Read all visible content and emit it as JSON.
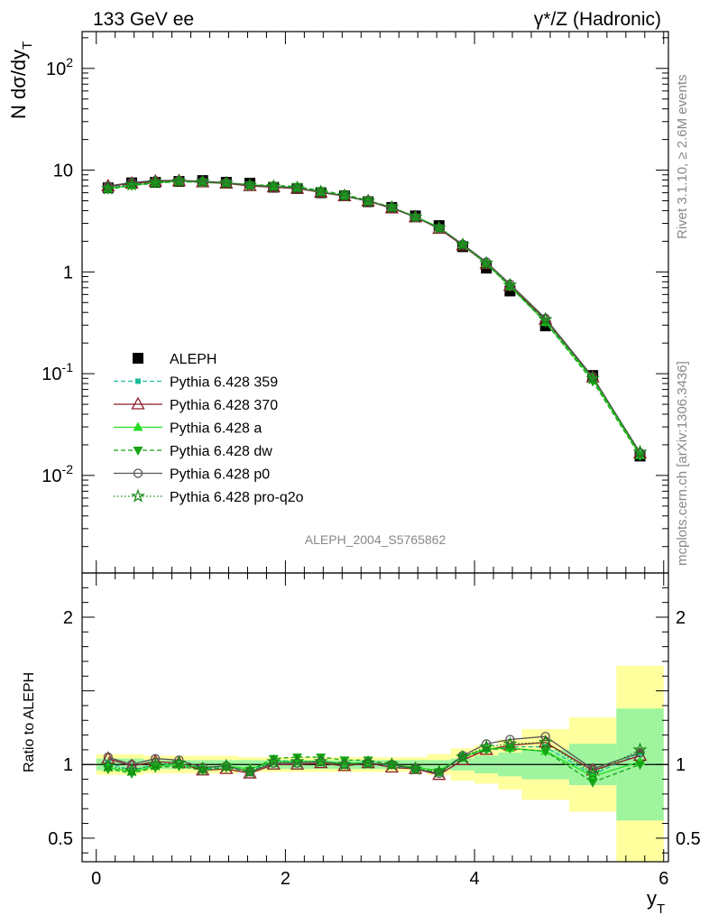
{
  "header": {
    "left": "133 GeV ee",
    "right": "γ*/Z (Hadronic)"
  },
  "side_text": {
    "rivet": "Rivet 3.1.10, ≥ 2.6M events",
    "mcplots": "mcplots.cern.ch [arXiv:1306.3436]"
  },
  "watermark": "ALEPH_2004_S5765862",
  "ylabel_top": "N dσ/dy",
  "ylabel_top_sub": "T",
  "ylabel_bottom": "Ratio to ALEPH",
  "xlabel": "y",
  "xlabel_sub": "T",
  "colors": {
    "band_inner": "#9ef59e",
    "band_outer": "#ffff9e",
    "ref_line": "#000000"
  },
  "chart_data": [
    {
      "type": "scatter",
      "panel": "main",
      "yscale": "log",
      "xlim": [
        -0.15,
        6.05
      ],
      "ylim": [
        0.0011,
        230
      ],
      "ytick_labels": [
        "10^-2",
        "10^-1",
        "1",
        "10",
        "10^2"
      ],
      "xtick_labels": [
        "0",
        "2",
        "4",
        "6"
      ],
      "legend_position": "bottom-left",
      "x": [
        0.125,
        0.375,
        0.625,
        0.875,
        1.125,
        1.375,
        1.625,
        1.875,
        2.125,
        2.375,
        2.625,
        2.875,
        3.125,
        3.375,
        3.625,
        3.875,
        4.125,
        4.375,
        4.75,
        5.25,
        5.75
      ],
      "series": [
        {
          "name": "ALEPH",
          "color": "#000000",
          "marker": "square",
          "values": [
            6.7,
            7.5,
            7.6,
            7.75,
            7.9,
            7.6,
            7.45,
            6.8,
            6.6,
            6.0,
            5.6,
            4.9,
            4.3,
            3.55,
            2.85,
            1.77,
            1.09,
            0.65,
            0.295,
            0.096,
            0.0155
          ]
        },
        {
          "name": "Pythia 6.428 359",
          "color": "#1abc9c",
          "marker": "small-square",
          "line": "dashed",
          "values": [
            6.8,
            7.2,
            7.6,
            7.75,
            7.65,
            7.45,
            7.05,
            7.0,
            6.7,
            6.15,
            5.6,
            5.0,
            4.28,
            3.45,
            2.7,
            1.87,
            1.2,
            0.73,
            0.33,
            0.089,
            0.0168
          ]
        },
        {
          "name": "Pythia 6.428 370",
          "color": "#8b1a2b",
          "marker": "open-triangle",
          "line": "solid",
          "values": [
            6.95,
            7.4,
            7.75,
            7.8,
            7.6,
            7.4,
            7.0,
            6.8,
            6.6,
            6.05,
            5.55,
            4.95,
            4.22,
            3.45,
            2.66,
            1.82,
            1.2,
            0.73,
            0.34,
            0.092,
            0.0165
          ]
        },
        {
          "name": "Pythia 6.428 a",
          "color": "#22dd22",
          "marker": "triangle",
          "line": "solid",
          "values": [
            6.55,
            7.1,
            7.5,
            7.8,
            7.7,
            7.5,
            7.2,
            6.95,
            6.7,
            6.1,
            5.65,
            4.95,
            4.3,
            3.5,
            2.75,
            1.86,
            1.21,
            0.72,
            0.32,
            0.088,
            0.0158
          ]
        },
        {
          "name": "Pythia 6.428 dw",
          "color": "#16a516",
          "marker": "inverted-triangle",
          "line": "dashed",
          "values": [
            6.5,
            7.05,
            7.45,
            7.7,
            7.6,
            7.45,
            7.15,
            7.1,
            6.9,
            6.3,
            5.75,
            5.05,
            4.3,
            3.45,
            2.7,
            1.85,
            1.2,
            0.72,
            0.32,
            0.084,
            0.0155
          ]
        },
        {
          "name": "Pythia 6.428 p0",
          "color": "#555555",
          "marker": "open-circle",
          "line": "solid",
          "values": [
            7.0,
            7.55,
            7.9,
            7.95,
            7.75,
            7.55,
            7.1,
            6.9,
            6.7,
            6.1,
            5.6,
            4.95,
            4.3,
            3.45,
            2.7,
            1.87,
            1.25,
            0.76,
            0.35,
            0.093,
            0.0167
          ]
        },
        {
          "name": "Pythia 6.428 pro-q2o",
          "color": "#118811",
          "marker": "open-star",
          "line": "dotted",
          "values": [
            6.6,
            7.2,
            7.6,
            7.8,
            7.7,
            7.5,
            7.1,
            6.9,
            6.7,
            6.1,
            5.6,
            4.95,
            4.3,
            3.45,
            2.7,
            1.85,
            1.22,
            0.74,
            0.34,
            0.09,
            0.017
          ]
        }
      ]
    },
    {
      "type": "line",
      "panel": "ratio",
      "ylim": [
        0.34,
        2.3
      ],
      "ytick_labels": [
        "0.5",
        "1",
        "2"
      ],
      "xtick_labels": [
        "0",
        "2",
        "4",
        "6"
      ],
      "bin_edges": [
        0,
        0.25,
        0.5,
        0.75,
        1.0,
        1.25,
        1.5,
        1.75,
        2.0,
        2.25,
        2.5,
        2.75,
        3.0,
        3.25,
        3.5,
        3.75,
        4.0,
        4.25,
        4.5,
        5.0,
        5.5,
        6.0
      ],
      "band_inner": [
        0.04,
        0.04,
        0.03,
        0.03,
        0.03,
        0.03,
        0.03,
        0.03,
        0.03,
        0.03,
        0.03,
        0.03,
        0.03,
        0.03,
        0.03,
        0.04,
        0.06,
        0.08,
        0.1,
        0.14,
        0.38
      ],
      "band_outer": [
        0.07,
        0.07,
        0.06,
        0.06,
        0.06,
        0.06,
        0.05,
        0.05,
        0.05,
        0.05,
        0.05,
        0.05,
        0.05,
        0.05,
        0.07,
        0.11,
        0.13,
        0.17,
        0.24,
        0.32,
        0.67
      ],
      "x": [
        0.125,
        0.375,
        0.625,
        0.875,
        1.125,
        1.375,
        1.625,
        1.875,
        2.125,
        2.375,
        2.625,
        2.875,
        3.125,
        3.375,
        3.625,
        3.875,
        4.125,
        4.375,
        4.75,
        5.25,
        5.75
      ],
      "series": [
        {
          "name": "Pythia 6.428 359",
          "color": "#1abc9c",
          "marker": "small-square",
          "line": "dashed",
          "values": [
            1.01,
            0.96,
            1.0,
            1.0,
            0.97,
            0.98,
            0.95,
            1.03,
            1.02,
            1.02,
            1.0,
            1.02,
            0.99,
            0.97,
            0.95,
            1.06,
            1.1,
            1.12,
            1.12,
            0.93,
            1.08
          ]
        },
        {
          "name": "Pythia 6.428 370",
          "color": "#8b1a2b",
          "marker": "open-triangle",
          "line": "solid",
          "values": [
            1.04,
            0.99,
            1.02,
            1.01,
            0.96,
            0.97,
            0.94,
            1.0,
            1.0,
            1.01,
            0.99,
            1.01,
            0.98,
            0.97,
            0.93,
            1.03,
            1.1,
            1.13,
            1.15,
            0.96,
            1.06
          ]
        },
        {
          "name": "Pythia 6.428 a",
          "color": "#22dd22",
          "marker": "triangle",
          "line": "solid",
          "values": [
            0.98,
            0.95,
            0.99,
            1.0,
            0.98,
            0.99,
            0.97,
            1.02,
            1.02,
            1.02,
            1.01,
            1.01,
            1.0,
            0.98,
            0.96,
            1.05,
            1.11,
            1.11,
            1.09,
            0.92,
            1.02
          ]
        },
        {
          "name": "Pythia 6.428 dw",
          "color": "#16a516",
          "marker": "inverted-triangle",
          "line": "dashed",
          "values": [
            0.97,
            0.94,
            0.98,
            0.99,
            0.96,
            0.98,
            0.96,
            1.04,
            1.05,
            1.05,
            1.03,
            1.03,
            1.0,
            0.97,
            0.95,
            1.05,
            1.1,
            1.11,
            1.09,
            0.88,
            1.0
          ]
        },
        {
          "name": "Pythia 6.428 p0",
          "color": "#555555",
          "marker": "open-circle",
          "line": "solid",
          "values": [
            1.05,
            1.0,
            1.04,
            1.03,
            0.98,
            0.99,
            0.95,
            1.01,
            1.01,
            1.02,
            1.0,
            1.01,
            1.0,
            0.97,
            0.94,
            1.06,
            1.14,
            1.17,
            1.19,
            0.97,
            1.08
          ]
        },
        {
          "name": "Pythia 6.428 pro-q2o",
          "color": "#118811",
          "marker": "open-star",
          "line": "dotted",
          "values": [
            0.99,
            0.96,
            1.0,
            1.01,
            0.97,
            0.99,
            0.95,
            1.02,
            1.02,
            1.02,
            1.0,
            1.01,
            1.0,
            0.97,
            0.95,
            1.05,
            1.12,
            1.14,
            1.15,
            0.94,
            1.1
          ]
        }
      ]
    }
  ]
}
